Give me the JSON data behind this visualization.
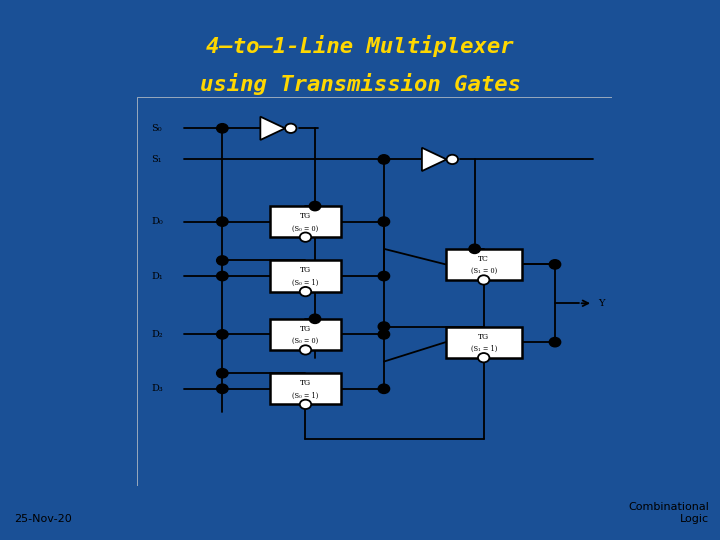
{
  "bg_color": "#1a5096",
  "title_line1": "4–to–1-Line Multiplexer",
  "title_line2": "using Transmission Gates",
  "title_color": "#FFD700",
  "title_fontsize": 16,
  "date_text": "25-Nov-20",
  "footer_text": "Combinational\nLogic",
  "line_color": "#000000"
}
